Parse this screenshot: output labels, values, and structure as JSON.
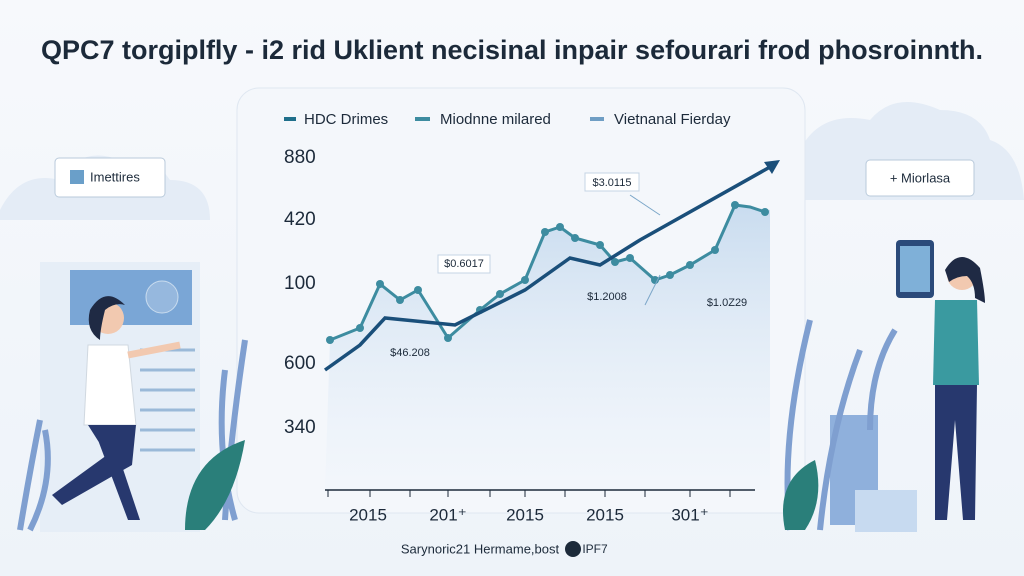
{
  "header": {
    "title": "QPC7 torgiplfly - i2 rid Uklient necisinal inpair sefourari frod phosroinnth."
  },
  "panel": {
    "legend": [
      "HDC Drimes",
      "Miodnne milared",
      "Vietnanal Fierday"
    ],
    "y_labels": [
      "880",
      "420",
      "100",
      "600",
      "340"
    ],
    "x_labels": [
      "2015",
      "201⁺",
      "2015",
      "2015",
      "301⁺"
    ],
    "annotations": [
      "$3.0115",
      "$0.6017",
      "$46.208",
      "$1.2008",
      "$1.0Z29"
    ]
  },
  "left_button": {
    "label": "Imettires"
  },
  "right_button": {
    "label": "+ Miorlasa"
  },
  "footer": {
    "text": "Sarynoric21 Hermame,bost",
    "badge": "IPF7"
  }
}
